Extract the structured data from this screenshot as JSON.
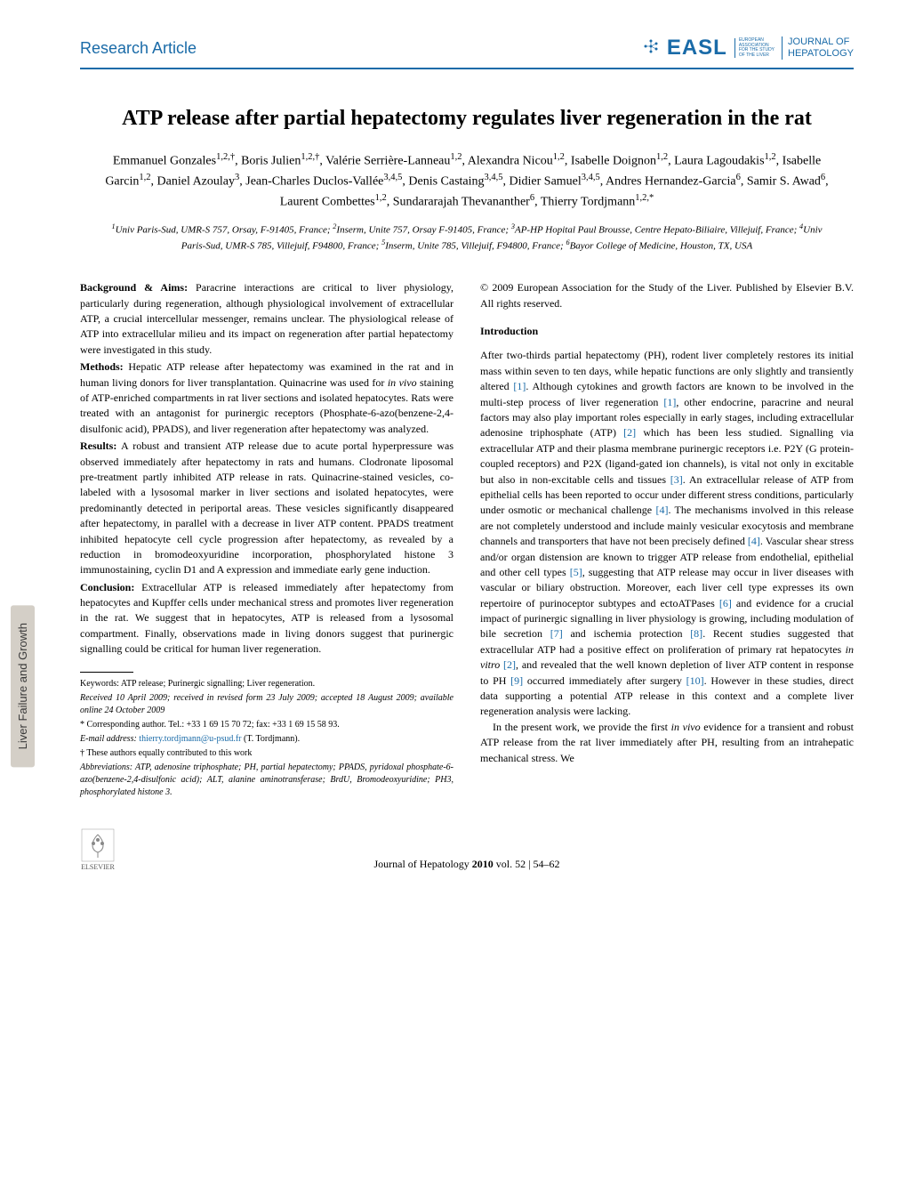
{
  "header": {
    "article_type": "Research Article",
    "easl": "EASL",
    "easl_sub": "EUROPEAN\nASSOCIATION\nFOR THE STUDY\nOF THE LIVER",
    "journal": "JOURNAL OF\nHEPATOLOGY"
  },
  "title": "ATP release after partial hepatectomy regulates liver regeneration in the rat",
  "authors": "Emmanuel Gonzales<sup>1,2,†</sup>, Boris Julien<sup>1,2,†</sup>, Valérie Serrière-Lanneau<sup>1,2</sup>, Alexandra Nicou<sup>1,2</sup>, Isabelle Doignon<sup>1,2</sup>, Laura Lagoudakis<sup>1,2</sup>, Isabelle Garcin<sup>1,2</sup>, Daniel Azoulay<sup>3</sup>, Jean-Charles Duclos-Vallée<sup>3,4,5</sup>, Denis Castaing<sup>3,4,5</sup>, Didier Samuel<sup>3,4,5</sup>, Andres Hernandez-Garcia<sup>6</sup>, Samir S. Awad<sup>6</sup>, Laurent Combettes<sup>1,2</sup>, Sundararajah Thevananther<sup>6</sup>, Thierry Tordjmann<sup>1,2,*</sup>",
  "affiliations": "<sup>1</sup>Univ Paris-Sud, UMR-S 757, Orsay, F-91405, France; <sup>2</sup>Inserm, Unite 757, Orsay F-91405, France; <sup>3</sup>AP-HP Hopital Paul Brousse, Centre Hepato-Biliaire, Villejuif, France; <sup>4</sup>Univ Paris-Sud, UMR-S 785, Villejuif, F94800, France; <sup>5</sup>Inserm, Unite 785, Villejuif, F94800, France; <sup>6</sup>Bayor College of Medicine, Houston, TX, USA",
  "abstract": {
    "background_label": "Background & Aims:",
    "background": " Paracrine interactions are critical to liver physiology, particularly during regeneration, although physiological involvement of extracellular ATP, a crucial intercellular messenger, remains unclear. The physiological release of ATP into extracellular milieu and its impact on regeneration after partial hepatectomy were investigated in this study.",
    "methods_label": "Methods:",
    "methods": " Hepatic ATP release after hepatectomy was examined in the rat and in human living donors for liver transplantation. Quinacrine was used for <i>in vivo</i> staining of ATP-enriched compartments in rat liver sections and isolated hepatocytes. Rats were treated with an antagonist for purinergic receptors (Phosphate-6-azo(benzene-2,4-disulfonic acid), PPADS), and liver regeneration after hepatectomy was analyzed.",
    "results_label": "Results:",
    "results": " A robust and transient ATP release due to acute portal hyperpressure was observed immediately after hepatectomy in rats and humans. Clodronate liposomal pre-treatment partly inhibited ATP release in rats. Quinacrine-stained vesicles, co-labeled with a lysosomal marker in liver sections and isolated hepatocytes, were predominantly detected in periportal areas. These vesicles significantly disappeared after hepatectomy, in parallel with a decrease in liver ATP content. PPADS treatment inhibited hepatocyte cell cycle progression after hepatectomy, as revealed by a reduction in bromodeoxyuridine incorporation, phosphorylated histone 3 immunostaining, cyclin D1 and A expression and immediate early gene induction.",
    "conclusion_label": "Conclusion:",
    "conclusion": " Extracellular ATP is released immediately after hepatectomy from hepatocytes and Kupffer cells under mechanical stress and promotes liver regeneration in the rat. We suggest that in hepatocytes, ATP is released from a lysosomal compartment. Finally, observations made in living donors suggest that purinergic signalling could be critical for human liver regeneration."
  },
  "copyright": "© 2009 European Association for the Study of the Liver. Published by Elsevier B.V. All rights reserved.",
  "intro_heading": "Introduction",
  "intro_p1": "After two-thirds partial hepatectomy (PH), rodent liver completely restores its initial mass within seven to ten days, while hepatic functions are only slightly and transiently altered <span class='ref-link'>[1]</span>. Although cytokines and growth factors are known to be involved in the multi-step process of liver regeneration <span class='ref-link'>[1]</span>, other endocrine, paracrine and neural factors may also play important roles especially in early stages, including extracellular adenosine triphosphate (ATP) <span class='ref-link'>[2]</span> which has been less studied. Signalling via extracellular ATP and their plasma membrane purinergic receptors i.e. P2Y (G protein-coupled receptors) and P2X (ligand-gated ion channels), is vital not only in excitable but also in non-excitable cells and tissues <span class='ref-link'>[3]</span>. An extracellular release of ATP from epithelial cells has been reported to occur under different stress conditions, particularly under osmotic or mechanical challenge <span class='ref-link'>[4]</span>. The mechanisms involved in this release are not completely understood and include mainly vesicular exocytosis and membrane channels and transporters that have not been precisely defined <span class='ref-link'>[4]</span>. Vascular shear stress and/or organ distension are known to trigger ATP release from endothelial, epithelial and other cell types <span class='ref-link'>[5]</span>, suggesting that ATP release may occur in liver diseases with vascular or biliary obstruction. Moreover, each liver cell type expresses its own repertoire of purinoceptor subtypes and ectoATPases <span class='ref-link'>[6]</span> and evidence for a crucial impact of purinergic signalling in liver physiology is growing, including modulation of bile secretion <span class='ref-link'>[7]</span> and ischemia protection <span class='ref-link'>[8]</span>. Recent studies suggested that extracellular ATP had a positive effect on proliferation of primary rat hepatocytes <i>in vitro</i> <span class='ref-link'>[2]</span>, and revealed that the well known depletion of liver ATP content in response to PH <span class='ref-link'>[9]</span> occurred immediately after surgery <span class='ref-link'>[10]</span>. However in these studies, direct data supporting a potential ATP release in this context and a complete liver regeneration analysis were lacking.",
  "intro_p2": "In the present work, we provide the first <i>in vivo</i> evidence for a transient and robust ATP release from the rat liver immediately after PH, resulting from an intrahepatic mechanical stress. We",
  "footnotes": {
    "keywords": "Keywords: ATP release; Purinergic signalling; Liver regeneration.",
    "received": "Received 10 April 2009; received in revised form 23 July 2009; accepted 18 August 2009; available online 24 October 2009",
    "corresponding": "* Corresponding author. Tel.: +33 1 69 15 70 72; fax: +33 1 69 15 58 93.",
    "email_label": "E-mail address:",
    "email": "thierry.tordjmann@u-psud.fr",
    "email_name": " (T. Tordjmann).",
    "equal": "† These authors equally contributed to this work",
    "abbrev": "Abbreviations: ATP, adenosine triphosphate; PH, partial hepatectomy; PPADS, pyridoxal phosphate-6-azo(benzene-2,4-disulfonic acid); ALT, alanine aminotransferase; BrdU, Bromodeoxyuridine; PH3, phosphorylated histone 3."
  },
  "side_tab": "Liver Failure and Growth",
  "citation": "Journal of Hepatology 2010 vol. 52 | 54–62",
  "elsevier": "ELSEVIER",
  "colors": {
    "brand": "#1a6ba8",
    "side_tab_bg": "#d4cfc7",
    "side_tab_text": "#3a3a3a"
  }
}
